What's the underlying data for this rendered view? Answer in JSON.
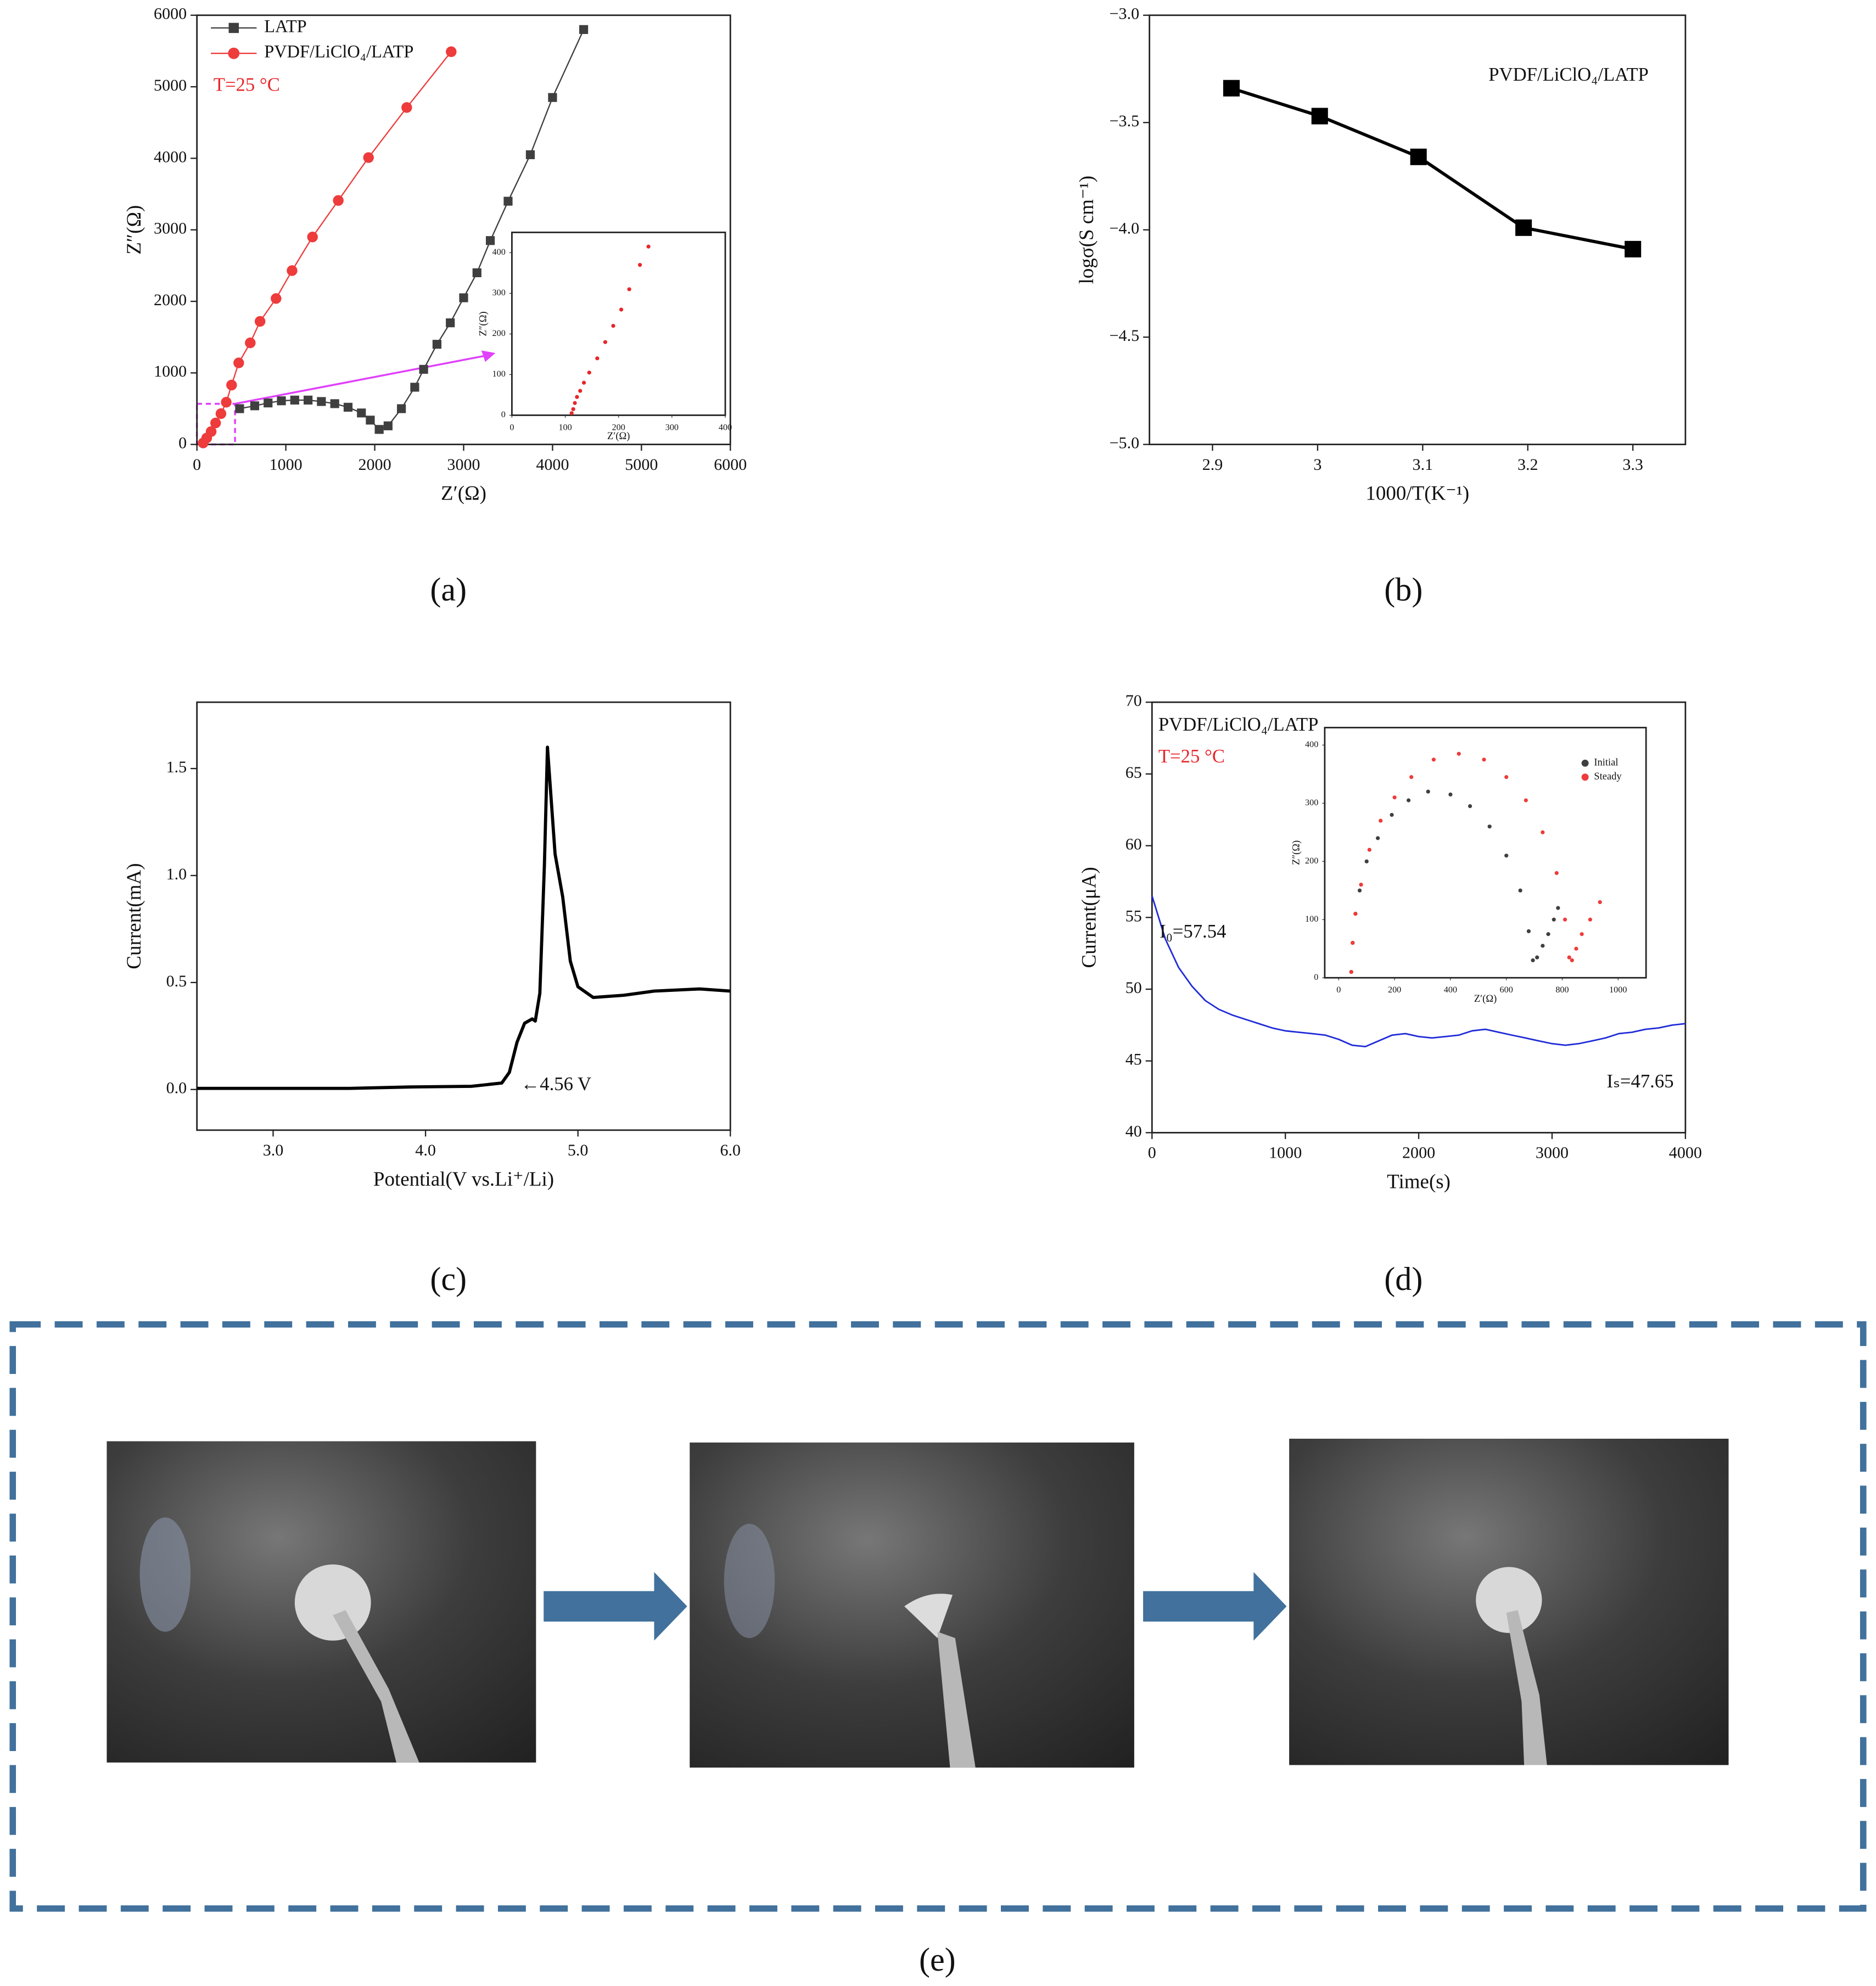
{
  "chart_data": [
    {
      "type": "line",
      "panel_label": "(a)",
      "xlabel": "Z′(Ω)",
      "ylabel": "Z″(Ω)",
      "xlim": [
        0,
        6000
      ],
      "ylim": [
        0,
        6000
      ],
      "xticks": [
        0,
        1000,
        2000,
        3000,
        4000,
        5000,
        6000
      ],
      "yticks": [
        0,
        1000,
        2000,
        3000,
        4000,
        5000,
        6000
      ],
      "legend": "upper left",
      "grid": false,
      "annotations": [
        {
          "text": "T=25 °C",
          "color": "#e8262a"
        }
      ],
      "series": [
        {
          "name": "LATP",
          "color": "#3f3f3f",
          "marker": "square",
          "x": [
            480,
            650,
            800,
            950,
            1100,
            1250,
            1400,
            1550,
            1700,
            1850,
            1950,
            2050,
            2150,
            2300,
            2450,
            2550,
            2700,
            2850,
            3000,
            3150,
            3300,
            3500,
            3750,
            4000,
            4350
          ],
          "values": [
            500,
            540,
            580,
            610,
            620,
            620,
            600,
            570,
            520,
            440,
            340,
            210,
            260,
            500,
            800,
            1050,
            1400,
            1700,
            2050,
            2400,
            2850,
            3400,
            4050,
            4850,
            5800
          ]
        },
        {
          "name": "PVDF/LiClO₄/LATP",
          "color": "#ee3b3b",
          "marker": "circle",
          "x": [
            70,
            110,
            160,
            210,
            270,
            330,
            390,
            470,
            600,
            710,
            890,
            1070,
            1300,
            1590,
            1930,
            2360,
            2860
          ],
          "values": [
            20,
            90,
            180,
            300,
            430,
            590,
            830,
            1140,
            1420,
            1720,
            2040,
            2430,
            2900,
            3410,
            4010,
            4710,
            5490
          ]
        }
      ],
      "inset": {
        "type": "scatter",
        "xlabel": "Z′(Ω)",
        "ylabel": "Z″(Ω)",
        "xlim": [
          0,
          400
        ],
        "ylim": [
          0,
          450
        ],
        "xticks": [
          0,
          100,
          200,
          300,
          400
        ],
        "yticks": [
          0,
          100,
          200,
          300,
          400
        ],
        "series": [
          {
            "color": "#e8262a",
            "marker": "circle",
            "x": [
              112,
              115,
              118,
              122,
              128,
              135,
              145,
              160,
              175,
              190,
              205,
              220,
              240,
              256
            ],
            "values": [
              5,
              15,
              30,
              45,
              60,
              80,
              105,
              140,
              180,
              220,
              260,
              310,
              370,
              415
            ]
          }
        ]
      }
    },
    {
      "type": "line",
      "panel_label": "(b)",
      "xlabel": "1000/T(K⁻¹)",
      "ylabel": "logσ(S cm⁻¹)",
      "xlim": [
        2.84,
        3.35
      ],
      "ylim": [
        -5,
        -3
      ],
      "xticks": [
        2.9,
        3,
        3.1,
        3.2,
        3.3
      ],
      "yticks": [
        {
          "value": -3,
          "label": "−3.0"
        },
        {
          "value": -3.5,
          "label": "−3.5"
        },
        {
          "value": -4,
          "label": "−4.0"
        },
        {
          "value": -4.5,
          "label": "−4.5"
        },
        {
          "value": -5,
          "label": "−5.0"
        }
      ],
      "grid": false,
      "annotations": [
        {
          "text": "PVDF/LiClO₄/LATP",
          "color": "#111111"
        }
      ],
      "series": [
        {
          "color": "#000000",
          "marker": "square",
          "x": [
            2.918,
            3.002,
            3.096,
            3.196,
            3.3
          ],
          "values": [
            -3.34,
            -3.47,
            -3.66,
            -3.99,
            -4.09
          ]
        }
      ]
    },
    {
      "type": "line",
      "panel_label": "(c)",
      "xlabel": "Potential(V vs.Li⁺/Li)",
      "ylabel": "Current(mA)",
      "xlim": [
        2.5,
        6
      ],
      "ylim": [
        -0.19,
        1.81
      ],
      "xticks": [
        {
          "value": 3,
          "label": "3.0"
        },
        {
          "value": 4,
          "label": "4.0"
        },
        {
          "value": 5,
          "label": "5.0"
        },
        {
          "value": 6,
          "label": "6.0"
        }
      ],
      "yticks": [
        {
          "value": 0,
          "label": "0.0"
        },
        0.5,
        {
          "value": 1,
          "label": "1.0"
        },
        1.5
      ],
      "grid": false,
      "annotations": [
        {
          "text": "←4.56 V",
          "color": "#111111"
        }
      ],
      "series": [
        {
          "color": "#000000",
          "marker": null,
          "x": [
            2.5,
            3.0,
            3.5,
            3.9,
            4.3,
            4.5,
            4.55,
            4.6,
            4.65,
            4.7,
            4.72,
            4.75,
            4.78,
            4.8,
            4.82,
            4.85,
            4.9,
            4.95,
            5.0,
            5.1,
            5.3,
            5.5,
            5.8,
            6.0
          ],
          "values": [
            0.005,
            0.005,
            0.005,
            0.012,
            0.015,
            0.03,
            0.08,
            0.22,
            0.31,
            0.33,
            0.32,
            0.45,
            1.05,
            1.6,
            1.4,
            1.1,
            0.9,
            0.6,
            0.48,
            0.43,
            0.44,
            0.46,
            0.47,
            0.46
          ]
        }
      ]
    },
    {
      "type": "line",
      "panel_label": "(d)",
      "xlabel": "Time(s)",
      "ylabel": "Current(μA)",
      "xlim": [
        0,
        4000
      ],
      "ylim": [
        40,
        70
      ],
      "xticks": [
        0,
        1000,
        2000,
        3000,
        4000
      ],
      "yticks": [
        40,
        45,
        50,
        55,
        60,
        65,
        70
      ],
      "grid": false,
      "annotations": [
        {
          "text": "PVDF/LiClO₄/LATP",
          "color": "#111111"
        },
        {
          "text": "T=25 °C",
          "color": "#e8262a"
        },
        {
          "text": "I₀=57.54",
          "color": "#111111"
        },
        {
          "text": "Iₛ=47.65",
          "color": "#111111"
        }
      ],
      "series": [
        {
          "color": "#1f2bd8",
          "marker": null,
          "x": [
            0,
            100,
            200,
            300,
            400,
            500,
            600,
            700,
            800,
            900,
            1000,
            1100,
            1200,
            1300,
            1400,
            1500,
            1600,
            1700,
            1800,
            1900,
            2000,
            2100,
            2200,
            2300,
            2400,
            2500,
            2600,
            2700,
            2800,
            2900,
            3000,
            3100,
            3200,
            3300,
            3400,
            3500,
            3600,
            3700,
            3800,
            3900,
            4000
          ],
          "values": [
            56.5,
            53.5,
            51.5,
            50.2,
            49.2,
            48.6,
            48.2,
            47.9,
            47.6,
            47.3,
            47.1,
            47.0,
            46.9,
            46.8,
            46.5,
            46.1,
            46.0,
            46.4,
            46.8,
            46.9,
            46.7,
            46.6,
            46.7,
            46.8,
            47.1,
            47.2,
            47.0,
            46.8,
            46.6,
            46.4,
            46.2,
            46.1,
            46.2,
            46.4,
            46.6,
            46.9,
            47.0,
            47.2,
            47.3,
            47.5,
            47.6
          ]
        }
      ],
      "inset": {
        "type": "scatter",
        "xlabel": "Z′(Ω)",
        "ylabel": "Z″(Ω)",
        "xlim": [
          -50,
          1100
        ],
        "ylim": [
          0,
          430
        ],
        "xticks": [
          0,
          200,
          400,
          600,
          800,
          1000
        ],
        "yticks": [
          0,
          100,
          200,
          300,
          400
        ],
        "legend": "upper right",
        "series": [
          {
            "name": "Initial",
            "color": "#3f3f3f",
            "marker": "circle",
            "x": [
              45,
              50,
              60,
              75,
              100,
              140,
              190,
              250,
              320,
              400,
              470,
              540,
              600,
              650,
              680,
              695,
              710,
              730,
              750,
              770,
              785
            ],
            "values": [
              10,
              60,
              110,
              150,
              200,
              240,
              280,
              305,
              320,
              315,
              295,
              260,
              210,
              150,
              80,
              30,
              35,
              55,
              75,
              100,
              120
            ]
          },
          {
            "name": "Steady",
            "color": "#ee3b3b",
            "marker": "circle",
            "x": [
              45,
              50,
              60,
              80,
              110,
              150,
              200,
              260,
              340,
              430,
              520,
              600,
              670,
              730,
              780,
              810,
              825,
              835,
              850,
              870,
              900,
              935
            ],
            "values": [
              10,
              60,
              110,
              160,
              220,
              270,
              310,
              345,
              375,
              385,
              375,
              345,
              305,
              250,
              180,
              100,
              35,
              30,
              50,
              75,
              100,
              130
            ]
          }
        ]
      }
    }
  ],
  "panel_e": {
    "label": "(e)"
  }
}
